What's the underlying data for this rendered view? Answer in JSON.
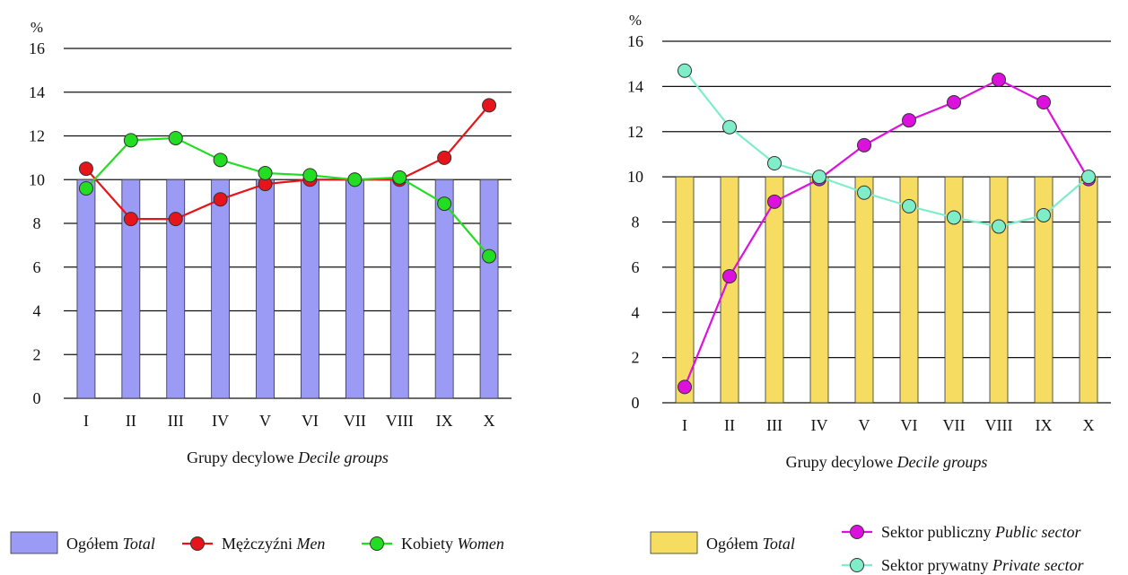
{
  "chart_data": [
    {
      "type": "bar",
      "unit_label": "%",
      "ylim": [
        0,
        16
      ],
      "yticks": [
        0,
        2,
        4,
        6,
        8,
        10,
        12,
        14,
        16
      ],
      "grid": true,
      "categories": [
        "I",
        "II",
        "III",
        "IV",
        "V",
        "VI",
        "VII",
        "VIII",
        "IX",
        "X"
      ],
      "xlabel": {
        "plain": "Grupy decylowe ",
        "italic": "Decile groups"
      },
      "bar_series": {
        "name_plain": "Ogółem ",
        "name_italic": "Total",
        "color": "#9b9bf5",
        "values": [
          10,
          10,
          10,
          10,
          10,
          10,
          10,
          10,
          10,
          10
        ]
      },
      "line_series": [
        {
          "name_plain": "Mężczyźni ",
          "name_italic": "Men",
          "color": "#e8141b",
          "values": [
            10.5,
            8.2,
            8.2,
            9.1,
            9.8,
            10.0,
            10.0,
            10.0,
            11.0,
            13.4
          ]
        },
        {
          "name_plain": "Kobiety ",
          "name_italic": "Women",
          "color": "#22dd22",
          "values": [
            9.6,
            11.8,
            11.9,
            10.9,
            10.3,
            10.2,
            10.0,
            10.1,
            8.9,
            6.5
          ]
        }
      ]
    },
    {
      "type": "bar",
      "unit_label": "%",
      "ylim": [
        0,
        16
      ],
      "yticks": [
        0,
        2,
        4,
        6,
        8,
        10,
        12,
        14,
        16
      ],
      "grid": true,
      "categories": [
        "I",
        "II",
        "III",
        "IV",
        "V",
        "VI",
        "VII",
        "VIII",
        "IX",
        "X"
      ],
      "xlabel": {
        "plain": "Grupy decylowe ",
        "italic": "Decile groups"
      },
      "bar_series": {
        "name_plain": "Ogółem ",
        "name_italic": "Total",
        "color": "#f7dc62",
        "values": [
          10,
          10,
          10,
          10,
          10,
          10,
          10,
          10,
          10,
          10
        ]
      },
      "line_series": [
        {
          "name_plain": "Sektor publiczny ",
          "name_italic": "Public sector",
          "color": "#dd11dd",
          "values": [
            0.7,
            5.6,
            8.9,
            9.9,
            11.4,
            12.5,
            13.3,
            14.3,
            13.3,
            9.9
          ]
        },
        {
          "name_plain": "Sektor prywatny ",
          "name_italic": "Private sector",
          "color": "#7feec8",
          "values": [
            14.7,
            12.2,
            10.6,
            10.0,
            9.3,
            8.7,
            8.2,
            7.8,
            8.3,
            10.0
          ]
        }
      ]
    }
  ]
}
